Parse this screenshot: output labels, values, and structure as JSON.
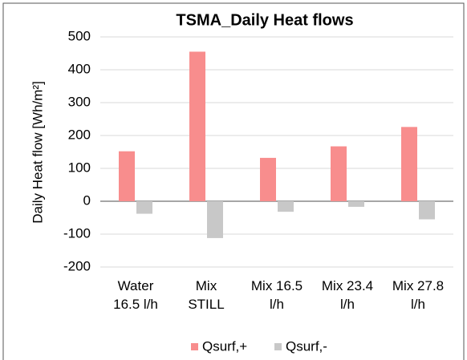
{
  "chart_data": {
    "type": "bar",
    "title": "TSMA_Daily Heat flows",
    "y_label": "Daily Heat flow [Wh/m²]",
    "categories": [
      [
        "Water",
        "16.5 l/h"
      ],
      [
        "Mix",
        "STILL"
      ],
      [
        "Mix 16.5",
        "l/h"
      ],
      [
        "Mix 23.4",
        "l/h"
      ],
      [
        "Mix 27.8",
        "l/h"
      ]
    ],
    "series": [
      {
        "name": "Qsurf,+",
        "color": "#f88d8d",
        "values": [
          152,
          455,
          132,
          167,
          226
        ]
      },
      {
        "name": "Qsurf,-",
        "color": "#c8c8c8",
        "values": [
          -38,
          -112,
          -32,
          -17,
          -55
        ]
      }
    ],
    "ylim": [
      -200,
      500
    ],
    "yticks": [
      -200,
      -100,
      0,
      100,
      200,
      300,
      400,
      500
    ],
    "grid": true
  }
}
